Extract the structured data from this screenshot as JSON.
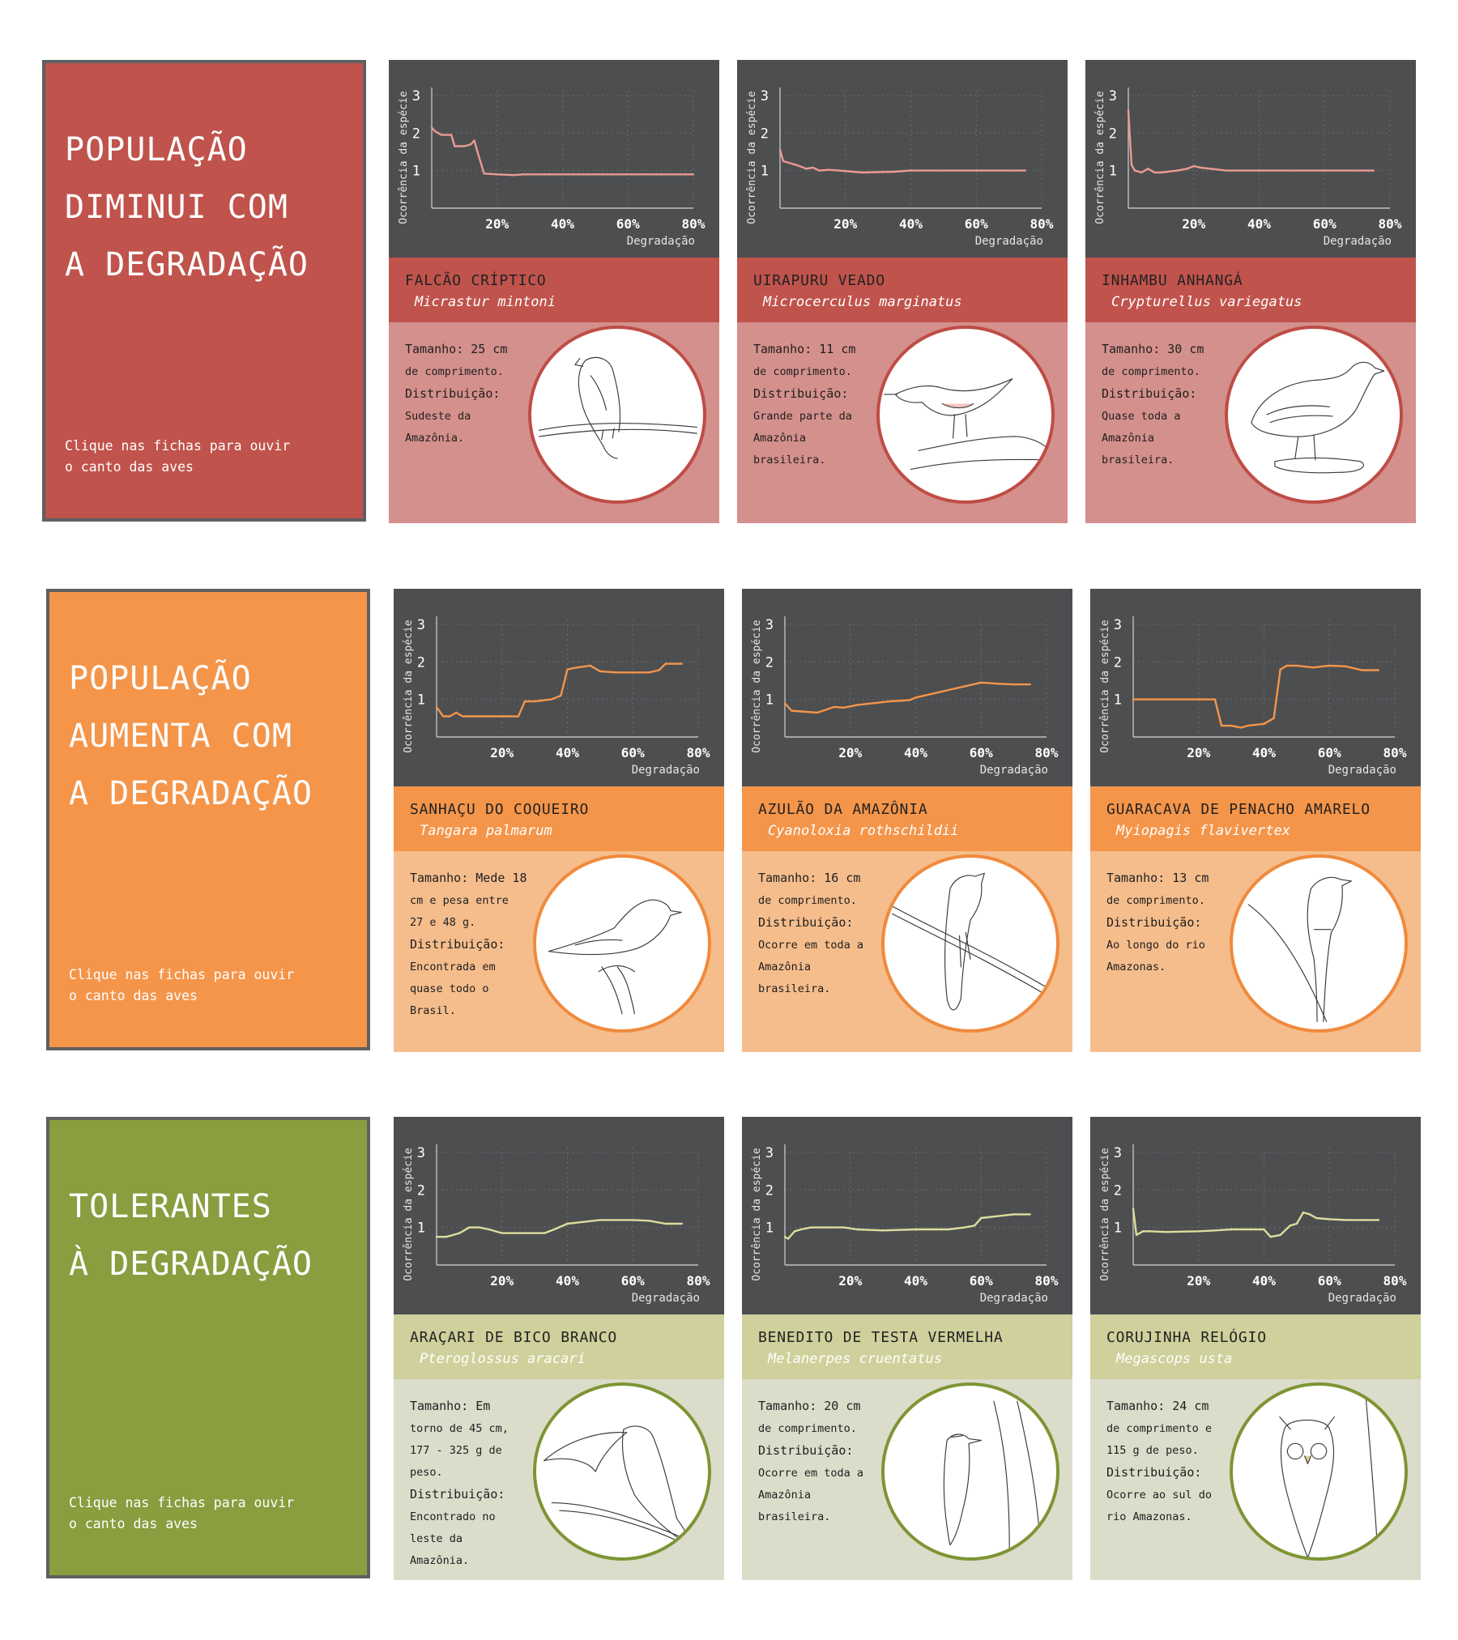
{
  "groups": [
    {
      "title_lines": [
        "POPULAÇÃO",
        "DIMINUI COM",
        "A DEGRADAÇÃO"
      ],
      "hint_lines": [
        "Clique nas fichas para ouvir",
        "o canto das aves"
      ],
      "colors": {
        "intro": "#c0534c",
        "band": "#c0534c",
        "info": "#d4908c",
        "line": "#eb9a93",
        "ring": "#bf4c46",
        "sci": "#ffffff"
      },
      "cards": [
        {
          "common_name": "FALCÃO CRÍPTICO",
          "scientific_name": "Micrastur mintoni",
          "info_lines": [
            "Tamanho: 25 cm",
            "de comprimento.",
            "Distribuição:",
            "Sudeste da",
            "Amazônia."
          ],
          "info_label_lines": [
            0,
            2
          ],
          "icon": "falcon-icon"
        },
        {
          "common_name": "UIRAPURU VEADO",
          "scientific_name": "Microcerculus marginatus",
          "info_lines": [
            "Tamanho: 11 cm",
            "de comprimento.",
            "Distribuição:",
            "Grande parte da",
            "Amazônia",
            "brasileira."
          ],
          "info_label_lines": [
            0,
            2
          ],
          "icon": "wren-icon"
        },
        {
          "common_name": "INHAMBU ANHANGÁ",
          "scientific_name": "Crypturellus variegatus",
          "info_lines": [
            "Tamanho: 30 cm",
            "de comprimento.",
            "Distribuição:",
            "Quase toda a",
            "Amazônia",
            "brasileira."
          ],
          "info_label_lines": [
            0,
            2
          ],
          "icon": "tinamou-icon"
        }
      ]
    },
    {
      "title_lines": [
        "POPULAÇÃO",
        "AUMENTA COM",
        "A DEGRADAÇÃO"
      ],
      "hint_lines": [
        "Clique nas fichas para ouvir",
        "o canto das aves"
      ],
      "colors": {
        "intro": "#f4954a",
        "band": "#f4954a",
        "info": "#f5bd8c",
        "line": "#f4954a",
        "ring": "#f08a3c",
        "sci": "#ffffff"
      },
      "cards": [
        {
          "common_name": "SANHAÇU DO COQUEIRO",
          "scientific_name": "Tangara palmarum",
          "info_lines": [
            "Tamanho: Mede 18",
            "cm e pesa entre",
            "27 e 48 g.",
            "Distribuição:",
            "Encontrada em",
            "quase todo o",
            "Brasil."
          ],
          "info_label_lines": [
            0,
            3
          ],
          "icon": "tanager-icon"
        },
        {
          "common_name": "AZULÃO DA AMAZÔNIA",
          "scientific_name": "Cyanoloxia rothschildii",
          "info_lines": [
            "Tamanho: 16 cm",
            "de comprimento.",
            "Distribuição:",
            "Ocorre em toda a",
            "Amazônia",
            "brasileira."
          ],
          "info_label_lines": [
            0,
            2
          ],
          "icon": "grosbeak-icon"
        },
        {
          "common_name": "GUARACAVA DE PENACHO AMARELO",
          "scientific_name": "Myiopagis flavivertex",
          "info_lines": [
            "Tamanho: 13 cm",
            "de comprimento.",
            "Distribuição:",
            "Ao longo do rio",
            "Amazonas."
          ],
          "info_label_lines": [
            0,
            2
          ],
          "icon": "elaenia-icon"
        }
      ]
    },
    {
      "title_lines": [
        "TOLERANTES",
        "À DEGRADAÇÃO"
      ],
      "hint_lines": [
        "Clique nas fichas para ouvir",
        "o canto das aves"
      ],
      "colors": {
        "intro": "#8a9d3f",
        "band": "#cfd09b",
        "info": "#dcdccb",
        "line": "#dedd9c",
        "ring": "#7d9533",
        "sci": "#ffffff"
      },
      "cards": [
        {
          "common_name": "ARAÇARI DE BICO BRANCO",
          "scientific_name": "Pteroglossus aracari",
          "info_lines": [
            "Tamanho: Em",
            "torno de 45 cm,",
            "177 - 325 g de",
            "peso.",
            "Distribuição:",
            "Encontrado no",
            "leste da",
            "Amazônia."
          ],
          "info_label_lines": [
            0,
            4
          ],
          "icon": "toucan-icon"
        },
        {
          "common_name": "BENEDITO DE TESTA VERMELHA",
          "scientific_name": "Melanerpes cruentatus",
          "info_lines": [
            "Tamanho: 20 cm",
            "de comprimento.",
            "Distribuição:",
            "Ocorre em toda a",
            "Amazônia",
            "brasileira."
          ],
          "info_label_lines": [
            0,
            2
          ],
          "icon": "woodpecker-icon"
        },
        {
          "common_name": "CORUJINHA RELÓGIO",
          "scientific_name": "Megascops usta",
          "info_lines": [
            "Tamanho: 24 cm",
            "de comprimento e",
            "115 g de peso.",
            "Distribuição:",
            "Ocorre ao sul do",
            "rio Amazonas."
          ],
          "info_label_lines": [
            0,
            3
          ],
          "icon": "owl-icon"
        }
      ]
    }
  ],
  "chart_data": [
    {
      "type": "line",
      "series_of": "FALCÃO CRÍPTICO",
      "xlabel": "Degradação",
      "ylabel": "Ocorrência da espécie",
      "x_ticks": [
        "20%",
        "40%",
        "60%",
        "80%"
      ],
      "y_ticks": [
        "1",
        "2",
        "3"
      ],
      "xlim": [
        0,
        80
      ],
      "ylim": [
        0,
        3.3
      ],
      "grid": true,
      "x": [
        0,
        1,
        3,
        6,
        7,
        10,
        12,
        13,
        14,
        16,
        20,
        25,
        28,
        35,
        50,
        65,
        80
      ],
      "y": [
        2.15,
        2.05,
        1.95,
        1.95,
        1.65,
        1.65,
        1.7,
        1.8,
        1.5,
        0.92,
        0.9,
        0.88,
        0.9,
        0.9,
        0.9,
        0.9,
        0.9
      ]
    },
    {
      "type": "line",
      "series_of": "UIRAPURU VEADO",
      "xlabel": "Degradação",
      "ylabel": "Ocorrência da espécie",
      "x_ticks": [
        "20%",
        "40%",
        "60%",
        "80%"
      ],
      "y_ticks": [
        "1",
        "2",
        "3"
      ],
      "xlim": [
        0,
        80
      ],
      "ylim": [
        0,
        3.3
      ],
      "grid": true,
      "x": [
        0,
        1,
        3,
        5,
        8,
        10,
        12,
        15,
        18,
        25,
        35,
        40,
        50,
        60,
        70,
        75
      ],
      "y": [
        1.55,
        1.25,
        1.2,
        1.15,
        1.05,
        1.08,
        1.0,
        1.02,
        1.0,
        0.95,
        0.97,
        1.0,
        1.0,
        1.0,
        1.0,
        1.0
      ]
    },
    {
      "type": "line",
      "series_of": "INHAMBU ANHANGÁ",
      "xlabel": "Degradação",
      "ylabel": "Ocorrência da espécie",
      "x_ticks": [
        "20%",
        "40%",
        "60%",
        "80%"
      ],
      "y_ticks": [
        "1",
        "2",
        "3"
      ],
      "xlim": [
        0,
        80
      ],
      "ylim": [
        0,
        3.3
      ],
      "grid": true,
      "x": [
        0,
        1,
        2,
        4,
        6,
        8,
        10,
        15,
        18,
        20,
        22,
        25,
        30,
        40,
        50,
        60,
        70,
        75
      ],
      "y": [
        2.6,
        1.15,
        1.0,
        0.95,
        1.05,
        0.95,
        0.95,
        1.0,
        1.05,
        1.12,
        1.08,
        1.05,
        1.0,
        1.0,
        1.0,
        1.0,
        1.0,
        1.0
      ]
    },
    {
      "type": "line",
      "series_of": "SANHAÇU DO COQUEIRO",
      "xlabel": "Degradação",
      "ylabel": "Ocorrência da espécie",
      "x_ticks": [
        "20%",
        "40%",
        "60%",
        "80%"
      ],
      "y_ticks": [
        "1",
        "2",
        "3"
      ],
      "xlim": [
        0,
        80
      ],
      "ylim": [
        0,
        3.3
      ],
      "grid": true,
      "x": [
        0,
        2,
        4,
        6,
        8,
        25,
        27,
        30,
        35,
        38,
        40,
        43,
        47,
        50,
        55,
        65,
        68,
        70,
        75
      ],
      "y": [
        0.8,
        0.55,
        0.55,
        0.65,
        0.55,
        0.55,
        0.95,
        0.95,
        1.0,
        1.1,
        1.8,
        1.85,
        1.9,
        1.75,
        1.72,
        1.72,
        1.78,
        1.95,
        1.95
      ]
    },
    {
      "type": "line",
      "series_of": "AZULÃO DA AMAZÔNIA",
      "xlabel": "Degradação",
      "ylabel": "Ocorrência da espécie",
      "x_ticks": [
        "20%",
        "40%",
        "60%",
        "80%"
      ],
      "y_ticks": [
        "1",
        "2",
        "3"
      ],
      "xlim": [
        0,
        80
      ],
      "ylim": [
        0,
        3.3
      ],
      "grid": true,
      "x": [
        0,
        2,
        5,
        10,
        15,
        18,
        22,
        27,
        32,
        38,
        40,
        45,
        50,
        55,
        60,
        65,
        70,
        75
      ],
      "y": [
        0.9,
        0.7,
        0.68,
        0.65,
        0.8,
        0.78,
        0.85,
        0.9,
        0.95,
        0.98,
        1.05,
        1.15,
        1.25,
        1.35,
        1.45,
        1.42,
        1.4,
        1.4
      ]
    },
    {
      "type": "line",
      "series_of": "GUARACAVA DE PENACHO AMARELO",
      "xlabel": "Degradação",
      "ylabel": "Ocorrência da espécie",
      "x_ticks": [
        "20%",
        "40%",
        "60%",
        "80%"
      ],
      "y_ticks": [
        "1",
        "2",
        "3"
      ],
      "xlim": [
        0,
        80
      ],
      "ylim": [
        0,
        3.3
      ],
      "grid": true,
      "x": [
        0,
        5,
        10,
        20,
        25,
        27,
        30,
        33,
        35,
        40,
        43,
        45,
        47,
        50,
        55,
        60,
        65,
        70,
        75
      ],
      "y": [
        1.0,
        1.0,
        1.0,
        1.0,
        1.0,
        0.3,
        0.3,
        0.25,
        0.3,
        0.35,
        0.5,
        1.8,
        1.9,
        1.9,
        1.85,
        1.9,
        1.88,
        1.78,
        1.78
      ]
    },
    {
      "type": "line",
      "series_of": "ARAÇARI DE BICO BRANCO",
      "xlabel": "Degradação",
      "ylabel": "Ocorrência da espécie",
      "x_ticks": [
        "20%",
        "40%",
        "60%",
        "80%"
      ],
      "y_ticks": [
        "1",
        "2",
        "3"
      ],
      "xlim": [
        0,
        80
      ],
      "ylim": [
        0,
        3.3
      ],
      "grid": true,
      "x": [
        0,
        3,
        7,
        10,
        13,
        16,
        20,
        25,
        33,
        36,
        40,
        45,
        50,
        55,
        60,
        65,
        70,
        75
      ],
      "y": [
        0.75,
        0.75,
        0.85,
        1.0,
        1.0,
        0.95,
        0.85,
        0.85,
        0.85,
        0.95,
        1.1,
        1.15,
        1.2,
        1.2,
        1.2,
        1.18,
        1.1,
        1.1
      ]
    },
    {
      "type": "line",
      "series_of": "BENEDITO DE TESTA VERMELHA",
      "xlabel": "Degradação",
      "ylabel": "Ocorrência da espécie",
      "x_ticks": [
        "20%",
        "40%",
        "60%",
        "80%"
      ],
      "y_ticks": [
        "1",
        "2",
        "3"
      ],
      "xlim": [
        0,
        80
      ],
      "ylim": [
        0,
        3.3
      ],
      "grid": true,
      "x": [
        0,
        1,
        3,
        5,
        8,
        12,
        18,
        22,
        30,
        40,
        50,
        55,
        58,
        60,
        65,
        70,
        75
      ],
      "y": [
        0.75,
        0.7,
        0.9,
        0.95,
        1.0,
        1.0,
        1.0,
        0.95,
        0.92,
        0.95,
        0.95,
        1.0,
        1.05,
        1.25,
        1.3,
        1.35,
        1.35
      ]
    },
    {
      "type": "line",
      "series_of": "CORUJINHA RELÓGIO",
      "xlabel": "Degradação",
      "ylabel": "Ocorrência da espécie",
      "x_ticks": [
        "20%",
        "40%",
        "60%",
        "80%"
      ],
      "y_ticks": [
        "1",
        "2",
        "3"
      ],
      "xlim": [
        0,
        80
      ],
      "ylim": [
        0,
        3.3
      ],
      "grid": true,
      "x": [
        0,
        1,
        3,
        5,
        10,
        20,
        25,
        30,
        40,
        42,
        45,
        48,
        50,
        52,
        54,
        56,
        60,
        65,
        70,
        75
      ],
      "y": [
        1.5,
        0.8,
        0.9,
        0.9,
        0.88,
        0.9,
        0.92,
        0.95,
        0.95,
        0.75,
        0.8,
        1.05,
        1.1,
        1.4,
        1.35,
        1.25,
        1.22,
        1.2,
        1.2,
        1.2
      ]
    }
  ]
}
